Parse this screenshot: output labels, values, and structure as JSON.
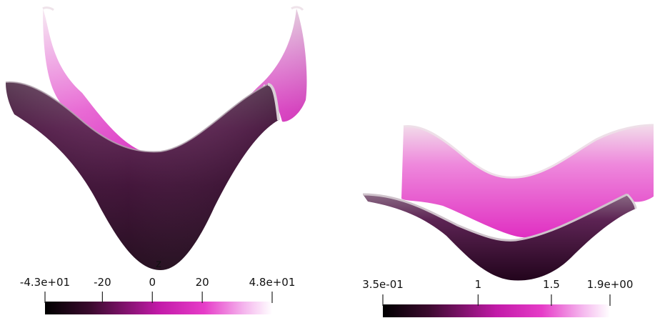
{
  "left_panel": {
    "colorbar": {
      "title": "z",
      "range": [
        -43,
        48
      ],
      "ticks": [
        {
          "label": "-4.3e+01",
          "value": -43
        },
        {
          "label": "-20",
          "value": -20
        },
        {
          "label": "0",
          "value": 0
        },
        {
          "label": "20",
          "value": 20
        },
        {
          "label": "4.8e+01",
          "value": 48
        }
      ]
    }
  },
  "right_panel": {
    "colorbar": {
      "range": [
        0.35,
        1.9
      ],
      "ticks": [
        {
          "label": "3.5e-01",
          "value": 0.35
        },
        {
          "label": "1",
          "value": 1
        },
        {
          "label": "1.5",
          "value": 1.5
        },
        {
          "label": "1.9e+00",
          "value": 1.9
        }
      ]
    }
  },
  "colormap": {
    "stops": [
      "#000000",
      "#3b0a2e",
      "#a0148a",
      "#e63cc8",
      "#f5a8ea",
      "#ffffff"
    ]
  }
}
